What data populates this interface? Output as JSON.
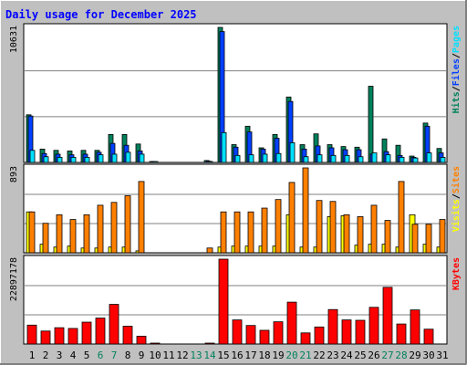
{
  "title": "Daily usage for December 2025",
  "colors": {
    "background": "#c0c0c0",
    "panel": "#ffffff",
    "grid": "#808080",
    "hits": "#00805c",
    "files": "#0040ff",
    "pages": "#00e0ff",
    "visits": "#ffff00",
    "sites": "#ff8000",
    "kbytes": "#ff0000",
    "title": "#0000ff",
    "weekend": "#00805c"
  },
  "chart_data": [
    {
      "type": "bar",
      "panel": "top",
      "max_label": "10631",
      "ylim": [
        0,
        10631
      ],
      "legend": [
        "Pages",
        "/",
        "Files",
        "/",
        "Hits"
      ],
      "series": [
        {
          "name": "Hits",
          "values": [
            3750,
            1050,
            950,
            900,
            950,
            950,
            2200,
            2200,
            1450,
            50,
            0,
            0,
            0,
            150,
            10631,
            1400,
            2850,
            1150,
            2200,
            5150,
            1400,
            2250,
            1400,
            1250,
            1200,
            6000,
            1850,
            1350,
            500,
            3100,
            1100
          ]
        },
        {
          "name": "Files",
          "values": [
            3650,
            700,
            650,
            600,
            650,
            800,
            1500,
            1350,
            900,
            50,
            0,
            0,
            0,
            100,
            10300,
            1200,
            2400,
            1050,
            1900,
            4800,
            1050,
            1300,
            1150,
            1000,
            1000,
            650,
            850,
            550,
            400,
            2850,
            750
          ]
        },
        {
          "name": "Pages",
          "values": [
            950,
            450,
            400,
            400,
            400,
            600,
            650,
            800,
            650,
            30,
            0,
            0,
            0,
            50,
            2350,
            550,
            600,
            650,
            700,
            1550,
            450,
            600,
            550,
            550,
            450,
            750,
            600,
            400,
            350,
            750,
            400
          ]
        }
      ]
    },
    {
      "type": "bar",
      "panel": "middle",
      "max_label": "893",
      "ylim": [
        0,
        893
      ],
      "legend": [
        "Sites",
        "/",
        "Visits"
      ],
      "series": [
        {
          "name": "Visits",
          "values": [
            430,
            90,
            60,
            70,
            50,
            50,
            60,
            60,
            20,
            0,
            0,
            0,
            0,
            0,
            60,
            70,
            70,
            70,
            70,
            400,
            60,
            60,
            380,
            390,
            80,
            90,
            90,
            60,
            400,
            90,
            60
          ]
        },
        {
          "name": "Sites",
          "values": [
            430,
            310,
            400,
            350,
            400,
            500,
            530,
            600,
            750,
            0,
            0,
            0,
            0,
            50,
            430,
            430,
            430,
            470,
            560,
            740,
            893,
            550,
            540,
            400,
            380,
            500,
            340,
            750,
            300,
            300,
            350
          ]
        }
      ]
    },
    {
      "type": "bar",
      "panel": "bottom",
      "max_label": "22897178",
      "ylim": [
        0,
        22897178
      ],
      "legend": [
        "KBytes"
      ],
      "series": [
        {
          "name": "KBytes",
          "values": [
            5100000,
            3500000,
            4400000,
            4200000,
            5900000,
            7000000,
            10700000,
            4800000,
            2100000,
            200000,
            0,
            0,
            0,
            200000,
            22897178,
            6500000,
            5000000,
            3700000,
            6000000,
            11300000,
            3000000,
            4600000,
            9300000,
            6500000,
            6400000,
            9900000,
            15300000,
            5400000,
            9200000,
            4000000,
            0
          ]
        }
      ]
    }
  ],
  "days": [
    "1",
    "2",
    "3",
    "4",
    "5",
    "6",
    "7",
    "8",
    "9",
    "10",
    "11",
    "12",
    "13",
    "14",
    "15",
    "16",
    "17",
    "18",
    "19",
    "20",
    "21",
    "22",
    "23",
    "24",
    "25",
    "26",
    "27",
    "28",
    "29",
    "30",
    "31"
  ],
  "weekend_days": [
    6,
    7,
    13,
    14,
    20,
    21,
    27,
    28
  ]
}
